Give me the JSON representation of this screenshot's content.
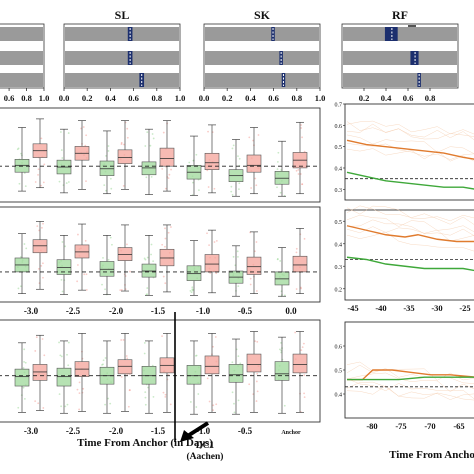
{
  "titles": {
    "sl": "SL",
    "sk": "SK",
    "rf": "RF"
  },
  "top_row": {
    "panels": [
      {
        "id": "p0",
        "x_ticks": [
          "0.6",
          "0.8",
          "1.0"
        ],
        "xlim": [
          0.45,
          1.0
        ],
        "rows": [
          {
            "q1": 0.46,
            "q3": 0.48,
            "median": 0.47
          },
          {
            "q1": 0.46,
            "q3": 0.48,
            "median": 0.47
          },
          {
            "q1": 0.46,
            "q3": 0.47,
            "median": 0.465
          }
        ]
      },
      {
        "id": "sl",
        "title_key": "sl",
        "x_ticks": [
          "0.0",
          "0.2",
          "0.4",
          "0.6",
          "0.8",
          "1.0"
        ],
        "xlim": [
          0.0,
          1.0
        ],
        "rows": [
          {
            "q1": 0.55,
            "q3": 0.59,
            "median": 0.57
          },
          {
            "q1": 0.55,
            "q3": 0.59,
            "median": 0.57
          },
          {
            "q1": 0.65,
            "q3": 0.69,
            "median": 0.67
          }
        ]
      },
      {
        "id": "sk",
        "title_key": "sk",
        "x_ticks": [
          "0.0",
          "0.2",
          "0.4",
          "0.6",
          "0.8",
          "1.0"
        ],
        "xlim": [
          0.0,
          1.0
        ],
        "rows": [
          {
            "q1": 0.58,
            "q3": 0.61,
            "median": 0.595
          },
          {
            "q1": 0.65,
            "q3": 0.68,
            "median": 0.665
          },
          {
            "q1": 0.67,
            "q3": 0.7,
            "median": 0.685
          }
        ]
      },
      {
        "id": "rf",
        "title_key": "rf",
        "x_ticks": [
          "0.2",
          "0.4",
          "0.6",
          "0.8"
        ],
        "xlim": [
          0.0,
          1.0
        ],
        "rows": [
          {
            "q1": 0.37,
            "q3": 0.48,
            "median": 0.43
          },
          {
            "q1": 0.59,
            "q3": 0.66,
            "median": 0.63
          },
          {
            "q1": 0.65,
            "q3": 0.68,
            "median": 0.665
          }
        ]
      }
    ]
  },
  "chart_data": [
    {
      "type": "boxplot",
      "panel": "left-top",
      "x": [
        -3.0,
        -2.5,
        -2.0,
        -1.5,
        -1.0,
        -0.5,
        0.0
      ],
      "ylim": [
        0,
        1
      ],
      "reference_line": 0.37,
      "series": [
        {
          "color": "#9ed89a",
          "boxes": [
            {
              "whisker_low": 0.08,
              "q1": 0.3,
              "median": 0.38,
              "q3": 0.45,
              "whisker_high": 0.82
            },
            {
              "whisker_low": 0.06,
              "q1": 0.28,
              "median": 0.36,
              "q3": 0.44,
              "whisker_high": 0.8
            },
            {
              "whisker_low": 0.05,
              "q1": 0.26,
              "median": 0.34,
              "q3": 0.43,
              "whisker_high": 0.78
            },
            {
              "whisker_low": 0.04,
              "q1": 0.27,
              "median": 0.35,
              "q3": 0.42,
              "whisker_high": 0.8
            },
            {
              "whisker_low": 0.03,
              "q1": 0.22,
              "median": 0.3,
              "q3": 0.38,
              "whisker_high": 0.72
            },
            {
              "whisker_low": 0.02,
              "q1": 0.19,
              "median": 0.26,
              "q3": 0.33,
              "whisker_high": 0.68
            },
            {
              "whisker_low": 0.02,
              "q1": 0.16,
              "median": 0.23,
              "q3": 0.31,
              "whisker_high": 0.66
            }
          ]
        },
        {
          "color": "#f4a39a",
          "boxes": [
            {
              "whisker_low": 0.12,
              "q1": 0.47,
              "median": 0.55,
              "q3": 0.63,
              "whisker_high": 0.92
            },
            {
              "whisker_low": 0.1,
              "q1": 0.44,
              "median": 0.52,
              "q3": 0.6,
              "whisker_high": 0.9
            },
            {
              "whisker_low": 0.1,
              "q1": 0.4,
              "median": 0.47,
              "q3": 0.56,
              "whisker_high": 0.9
            },
            {
              "whisker_low": 0.08,
              "q1": 0.37,
              "median": 0.46,
              "q3": 0.58,
              "whisker_high": 0.9
            },
            {
              "whisker_low": 0.06,
              "q1": 0.33,
              "median": 0.41,
              "q3": 0.52,
              "whisker_high": 0.85
            },
            {
              "whisker_low": 0.05,
              "q1": 0.3,
              "median": 0.38,
              "q3": 0.5,
              "whisker_high": 0.82
            },
            {
              "whisker_low": 0.05,
              "q1": 0.35,
              "median": 0.44,
              "q3": 0.53,
              "whisker_high": 0.88
            }
          ]
        }
      ]
    },
    {
      "type": "boxplot",
      "panel": "left-middle",
      "x": [
        -3.0,
        -2.5,
        -2.0,
        -1.5,
        -1.0,
        -0.5,
        0.0
      ],
      "x_tick_labels": [
        "-3.0",
        "-2.5",
        "-2.0",
        "-1.5",
        "-1.0",
        "-0.5",
        "0.0"
      ],
      "ylim": [
        0,
        1
      ],
      "reference_line": 0.3,
      "series": [
        {
          "color": "#9ed89a",
          "boxes": [
            {
              "whisker_low": 0.05,
              "q1": 0.3,
              "median": 0.38,
              "q3": 0.46,
              "whisker_high": 0.74
            },
            {
              "whisker_low": 0.04,
              "q1": 0.27,
              "median": 0.35,
              "q3": 0.44,
              "whisker_high": 0.72
            },
            {
              "whisker_low": 0.04,
              "q1": 0.25,
              "median": 0.33,
              "q3": 0.42,
              "whisker_high": 0.72
            },
            {
              "whisker_low": 0.03,
              "q1": 0.24,
              "median": 0.31,
              "q3": 0.39,
              "whisker_high": 0.72
            },
            {
              "whisker_low": 0.03,
              "q1": 0.2,
              "median": 0.28,
              "q3": 0.37,
              "whisker_high": 0.66
            },
            {
              "whisker_low": 0.02,
              "q1": 0.17,
              "median": 0.24,
              "q3": 0.31,
              "whisker_high": 0.6
            },
            {
              "whisker_low": 0.02,
              "q1": 0.15,
              "median": 0.22,
              "q3": 0.3,
              "whisker_high": 0.58
            }
          ]
        },
        {
          "color": "#f4a39a",
          "boxes": [
            {
              "whisker_low": 0.1,
              "q1": 0.52,
              "median": 0.6,
              "q3": 0.67,
              "whisker_high": 0.88
            },
            {
              "whisker_low": 0.09,
              "q1": 0.46,
              "median": 0.53,
              "q3": 0.61,
              "whisker_high": 0.85
            },
            {
              "whisker_low": 0.08,
              "q1": 0.43,
              "median": 0.5,
              "q3": 0.58,
              "whisker_high": 0.84
            },
            {
              "whisker_low": 0.07,
              "q1": 0.37,
              "median": 0.46,
              "q3": 0.56,
              "whisker_high": 0.84
            },
            {
              "whisker_low": 0.06,
              "q1": 0.3,
              "median": 0.39,
              "q3": 0.5,
              "whisker_high": 0.78
            },
            {
              "whisker_low": 0.05,
              "q1": 0.27,
              "median": 0.36,
              "q3": 0.47,
              "whisker_high": 0.76
            },
            {
              "whisker_low": 0.05,
              "q1": 0.3,
              "median": 0.38,
              "q3": 0.48,
              "whisker_high": 0.8
            }
          ]
        }
      ]
    },
    {
      "type": "boxplot",
      "panel": "left-bottom",
      "x": [
        -3.0,
        -2.5,
        -2.0,
        -1.5,
        -1.0,
        -0.5,
        0.0
      ],
      "x_tick_labels": [
        "-3.0",
        "-2.5",
        "-2.0",
        "-1.5",
        "-1.0",
        "-0.5",
        "Anchor"
      ],
      "xlabel": "Time From Anchor (in Days)",
      "ylim": [
        0,
        1
      ],
      "reference_line": 0.45,
      "vertical_marker": -1.3,
      "annotation": {
        "lines": [
          "DC1",
          "(Aachen)"
        ]
      },
      "series": [
        {
          "color": "#9ed89a",
          "boxes": [
            {
              "whisker_low": 0.06,
              "q1": 0.34,
              "median": 0.44,
              "q3": 0.52,
              "whisker_high": 0.8
            },
            {
              "whisker_low": 0.05,
              "q1": 0.34,
              "median": 0.44,
              "q3": 0.53,
              "whisker_high": 0.82
            },
            {
              "whisker_low": 0.05,
              "q1": 0.36,
              "median": 0.45,
              "q3": 0.54,
              "whisker_high": 0.82
            },
            {
              "whisker_low": 0.05,
              "q1": 0.36,
              "median": 0.45,
              "q3": 0.55,
              "whisker_high": 0.82
            },
            {
              "whisker_low": 0.04,
              "q1": 0.36,
              "median": 0.45,
              "q3": 0.56,
              "whisker_high": 0.82
            },
            {
              "whisker_low": 0.04,
              "q1": 0.38,
              "median": 0.46,
              "q3": 0.57,
              "whisker_high": 0.84
            },
            {
              "whisker_low": 0.05,
              "q1": 0.4,
              "median": 0.47,
              "q3": 0.6,
              "whisker_high": 0.86
            }
          ]
        },
        {
          "color": "#f4a39a",
          "boxes": [
            {
              "whisker_low": 0.08,
              "q1": 0.4,
              "median": 0.49,
              "q3": 0.57,
              "whisker_high": 0.88
            },
            {
              "whisker_low": 0.07,
              "q1": 0.44,
              "median": 0.52,
              "q3": 0.6,
              "whisker_high": 0.9
            },
            {
              "whisker_low": 0.07,
              "q1": 0.47,
              "median": 0.55,
              "q3": 0.62,
              "whisker_high": 0.9
            },
            {
              "whisker_low": 0.06,
              "q1": 0.48,
              "median": 0.56,
              "q3": 0.64,
              "whisker_high": 0.9
            },
            {
              "whisker_low": 0.06,
              "q1": 0.47,
              "median": 0.55,
              "q3": 0.66,
              "whisker_high": 0.9
            },
            {
              "whisker_low": 0.06,
              "q1": 0.49,
              "median": 0.57,
              "q3": 0.68,
              "whisker_high": 0.92
            },
            {
              "whisker_low": 0.06,
              "q1": 0.48,
              "median": 0.57,
              "q3": 0.68,
              "whisker_high": 0.92
            }
          ]
        }
      ]
    },
    {
      "type": "line",
      "panel": "right-top",
      "ylim": [
        0.25,
        0.7
      ],
      "y_tick_labels": [
        "0.7",
        "0.6",
        "0.5",
        "0.4",
        "0.3"
      ],
      "reference_line": 0.35,
      "series": [
        {
          "color": "#e07b2e",
          "points": [
            [
              0,
              0.53
            ],
            [
              0.15,
              0.51
            ],
            [
              0.3,
              0.5
            ],
            [
              0.45,
              0.49
            ],
            [
              0.6,
              0.48
            ],
            [
              0.75,
              0.47
            ],
            [
              0.9,
              0.45
            ],
            [
              1,
              0.44
            ]
          ]
        },
        {
          "color": "#3fa83a",
          "points": [
            [
              0,
              0.38
            ],
            [
              0.15,
              0.36
            ],
            [
              0.3,
              0.34
            ],
            [
              0.45,
              0.33
            ],
            [
              0.6,
              0.32
            ],
            [
              0.75,
              0.31
            ],
            [
              0.9,
              0.31
            ],
            [
              1,
              0.3
            ]
          ]
        }
      ]
    },
    {
      "type": "line",
      "panel": "right-middle",
      "x_tick_labels": [
        "-45",
        "-40",
        "-35",
        "-30",
        "-25"
      ],
      "ylim": [
        0.15,
        0.55
      ],
      "y_tick_labels": [
        "0.5",
        "0.4",
        "0.3",
        "0.2"
      ],
      "reference_line": 0.33,
      "series": [
        {
          "color": "#e07b2e",
          "points": [
            [
              0,
              0.48
            ],
            [
              0.15,
              0.46
            ],
            [
              0.3,
              0.44
            ],
            [
              0.45,
              0.43
            ],
            [
              0.55,
              0.44
            ],
            [
              0.7,
              0.42
            ],
            [
              0.85,
              0.41
            ],
            [
              1,
              0.41
            ]
          ]
        },
        {
          "color": "#3fa83a",
          "points": [
            [
              0,
              0.34
            ],
            [
              0.15,
              0.33
            ],
            [
              0.3,
              0.31
            ],
            [
              0.45,
              0.3
            ],
            [
              0.6,
              0.29
            ],
            [
              0.75,
              0.29
            ],
            [
              0.9,
              0.29
            ],
            [
              1,
              0.28
            ]
          ]
        }
      ]
    },
    {
      "type": "line",
      "panel": "right-bottom",
      "x_tick_labels": [
        "-80",
        "-75",
        "-70",
        "-65"
      ],
      "xlabel": "Time From Ancho",
      "ylim": [
        0.3,
        0.7
      ],
      "y_tick_labels": [
        "0.6",
        "0.5",
        "0.4"
      ],
      "reference_line": 0.43,
      "series": [
        {
          "color": "#e07b2e",
          "points": [
            [
              0,
              0.46
            ],
            [
              0.12,
              0.46
            ],
            [
              0.2,
              0.5
            ],
            [
              0.35,
              0.5
            ],
            [
              0.5,
              0.49
            ],
            [
              0.65,
              0.48
            ],
            [
              0.8,
              0.48
            ],
            [
              1,
              0.47
            ]
          ]
        },
        {
          "color": "#3fa83a",
          "points": [
            [
              0,
              0.46
            ],
            [
              0.2,
              0.46
            ],
            [
              0.4,
              0.46
            ],
            [
              0.6,
              0.47
            ],
            [
              0.8,
              0.47
            ],
            [
              1,
              0.47
            ]
          ]
        }
      ]
    }
  ]
}
